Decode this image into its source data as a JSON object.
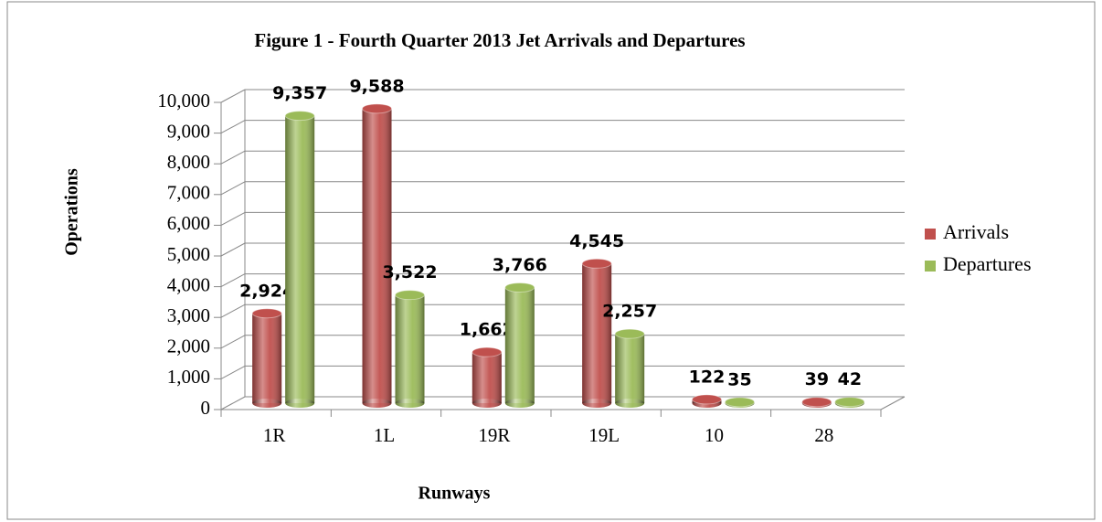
{
  "chart_data": {
    "type": "bar",
    "title": "Figure 1 - Fourth Quarter 2013 Jet Arrivals and Departures",
    "x_label": "Runways",
    "y_label": "Operations",
    "categories": [
      "1R",
      "1L",
      "19R",
      "19L",
      "10",
      "28"
    ],
    "series": [
      {
        "name": "Arrivals",
        "color": "#c0504d",
        "values": [
          2924,
          9588,
          1662,
          4545,
          122,
          39
        ],
        "value_labels": [
          "2,924",
          "9,588",
          "1,662",
          "4,545",
          "122",
          "39"
        ]
      },
      {
        "name": "Departures",
        "color": "#9bbb59",
        "values": [
          9357,
          3522,
          3766,
          2257,
          35,
          42
        ],
        "value_labels": [
          "9,357",
          "3,522",
          "3,766",
          "2,257",
          "35",
          "42"
        ]
      }
    ],
    "ylim": [
      0,
      10000
    ],
    "yticks": [
      0,
      {
        "value": 1000,
        "label": "1,000"
      },
      {
        "value": 2000,
        "label": "2,000"
      },
      {
        "value": 3000,
        "label": "3,000"
      },
      {
        "value": 4000,
        "label": "4,000"
      },
      {
        "value": 5000,
        "label": "5,000"
      },
      {
        "value": 6000,
        "label": "6,000"
      },
      {
        "value": 7000,
        "label": "7,000"
      },
      {
        "value": 8000,
        "label": "8,000"
      },
      {
        "value": 9000,
        "label": "9,000"
      },
      {
        "value": 10000,
        "label": "10,000"
      }
    ],
    "grid": true,
    "legend": "right"
  }
}
